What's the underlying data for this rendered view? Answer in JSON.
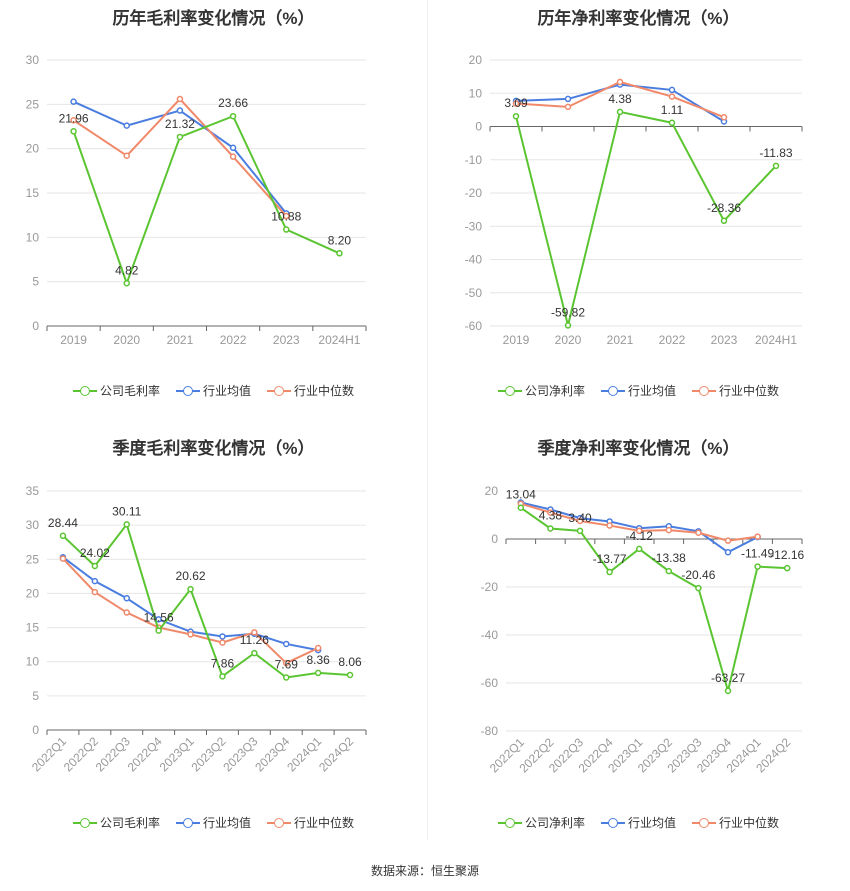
{
  "source": "数据来源：恒生聚源",
  "colors": {
    "company": "#5ac531",
    "avg": "#4a7de0",
    "median": "#f0896a",
    "grid": "#e6e6e6",
    "axis": "#999999"
  },
  "chart_data": [
    {
      "type": "line",
      "title": "历年毛利率变化情况（%）",
      "categories": [
        "2019",
        "2020",
        "2021",
        "2022",
        "2023",
        "2024H1"
      ],
      "ylim": [
        0,
        30
      ],
      "yticks": [
        0,
        5,
        10,
        15,
        20,
        25,
        30
      ],
      "rotate_labels": false,
      "series": [
        {
          "key": "company",
          "name": "公司毛利率",
          "values": [
            21.96,
            4.82,
            21.32,
            23.66,
            10.88,
            8.2
          ],
          "labels": [
            "21.96",
            "4.82",
            "21.32",
            "23.66",
            "10.88",
            "8.20"
          ]
        },
        {
          "key": "avg",
          "name": "行业均值",
          "values": [
            25.3,
            22.6,
            24.3,
            20.1,
            12.7,
            null
          ]
        },
        {
          "key": "median",
          "name": "行业中位数",
          "values": [
            23.2,
            19.2,
            25.6,
            19.1,
            12.4,
            null
          ]
        }
      ]
    },
    {
      "type": "line",
      "title": "历年净利率变化情况（%）",
      "categories": [
        "2019",
        "2020",
        "2021",
        "2022",
        "2023",
        "2024H1"
      ],
      "ylim": [
        -60,
        20
      ],
      "yticks": [
        -60,
        -50,
        -40,
        -30,
        -20,
        -10,
        0,
        10,
        20
      ],
      "rotate_labels": false,
      "series": [
        {
          "key": "company",
          "name": "公司净利率",
          "values": [
            3.09,
            -59.82,
            4.38,
            1.11,
            -28.36,
            -11.83
          ],
          "labels": [
            "3.09",
            "-59.82",
            "4.38",
            "1.11",
            "-28.36",
            "-11.83"
          ]
        },
        {
          "key": "avg",
          "name": "行业均值",
          "values": [
            7.7,
            8.3,
            12.6,
            11.0,
            1.5,
            null
          ]
        },
        {
          "key": "median",
          "name": "行业中位数",
          "values": [
            6.9,
            5.9,
            13.4,
            9.0,
            2.8,
            null
          ]
        }
      ]
    },
    {
      "type": "line",
      "title": "季度毛利率变化情况（%）",
      "categories": [
        "2022Q1",
        "2022Q2",
        "2022Q3",
        "2022Q4",
        "2023Q1",
        "2023Q2",
        "2023Q3",
        "2023Q4",
        "2024Q1",
        "2024Q2"
      ],
      "ylim": [
        0,
        35
      ],
      "yticks": [
        0,
        5,
        10,
        15,
        20,
        25,
        30,
        35
      ],
      "rotate_labels": true,
      "series": [
        {
          "key": "company",
          "name": "公司毛利率",
          "values": [
            28.44,
            24.02,
            30.11,
            14.56,
            20.62,
            7.86,
            11.26,
            7.69,
            8.36,
            8.06
          ],
          "labels": [
            "28.44",
            "24.02",
            "30.11",
            "14.56",
            "20.62",
            "7.86",
            "11.26",
            "7.69",
            "8.36",
            "8.06"
          ]
        },
        {
          "key": "avg",
          "name": "行业均值",
          "values": [
            25.3,
            21.8,
            19.3,
            16.2,
            14.4,
            13.7,
            14.1,
            12.6,
            11.7,
            null
          ]
        },
        {
          "key": "median",
          "name": "行业中位数",
          "values": [
            25.1,
            20.2,
            17.2,
            15.0,
            14.0,
            12.8,
            14.3,
            9.8,
            12.0,
            null
          ]
        }
      ]
    },
    {
      "type": "line",
      "title": "季度净利率变化情况（%）",
      "categories": [
        "2022Q1",
        "2022Q2",
        "2022Q3",
        "2022Q4",
        "2023Q1",
        "2023Q2",
        "2023Q3",
        "2023Q4",
        "2024Q1",
        "2024Q2"
      ],
      "ylim": [
        -80,
        20
      ],
      "yticks": [
        -80,
        -60,
        -40,
        -20,
        0,
        20
      ],
      "rotate_labels": true,
      "series": [
        {
          "key": "company",
          "name": "公司净利率",
          "values": [
            13.04,
            4.38,
            3.4,
            -13.77,
            -4.12,
            -13.38,
            -20.46,
            -63.27,
            -11.49,
            -12.16
          ],
          "labels": [
            "13.04",
            "4.38",
            "3.40",
            "-13.77",
            "-4.12",
            "-13.38",
            "-20.46",
            "-63.27",
            "-11.49",
            "-12.16"
          ]
        },
        {
          "key": "avg",
          "name": "行业均值",
          "values": [
            15.2,
            12.3,
            8.7,
            7.3,
            4.5,
            5.3,
            3.2,
            -5.5,
            0.8,
            null
          ]
        },
        {
          "key": "median",
          "name": "行业中位数",
          "values": [
            14.7,
            11.0,
            7.5,
            5.6,
            3.4,
            3.7,
            2.6,
            -0.7,
            1.0,
            null
          ]
        }
      ]
    }
  ]
}
